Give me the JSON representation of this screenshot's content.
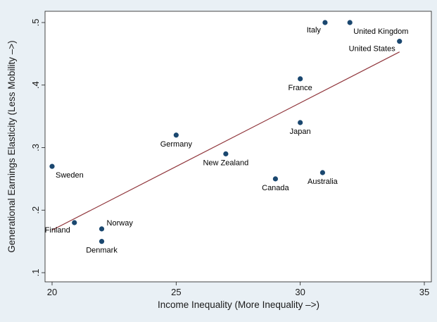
{
  "chart_data": {
    "type": "scatter",
    "title": "",
    "xlabel": "Income Inequality (More Inequality –>)",
    "ylabel": "Generational Earnings Elasticity (Less Mobility –>)",
    "xlim": [
      20,
      35
    ],
    "ylim": [
      0.1,
      0.5
    ],
    "x_ticks": [
      20,
      25,
      30,
      35
    ],
    "x_tick_labels": [
      "20",
      "25",
      "30",
      "35"
    ],
    "y_ticks": [
      0.1,
      0.2,
      0.3,
      0.4,
      0.5
    ],
    "y_tick_labels": [
      ".1",
      ".2",
      ".3",
      ".4",
      ".5"
    ],
    "grid": false,
    "legend": "none",
    "point_color": "#1a476f",
    "fit_line_color": "#90353b",
    "points": [
      {
        "label": "Italy",
        "x": 31.0,
        "y": 0.5,
        "label_pos": "bottom-left"
      },
      {
        "label": "United Kingdom",
        "x": 32.0,
        "y": 0.5,
        "label_pos": "bottom-right"
      },
      {
        "label": "United States",
        "x": 34.0,
        "y": 0.47,
        "label_pos": "bottom-left"
      },
      {
        "label": "France",
        "x": 30.0,
        "y": 0.41,
        "label_pos": "bottom"
      },
      {
        "label": "Japan",
        "x": 30.0,
        "y": 0.34,
        "label_pos": "bottom"
      },
      {
        "label": "Germany",
        "x": 25.0,
        "y": 0.32,
        "label_pos": "bottom"
      },
      {
        "label": "New Zealand",
        "x": 27.0,
        "y": 0.29,
        "label_pos": "bottom"
      },
      {
        "label": "Canada",
        "x": 29.0,
        "y": 0.25,
        "label_pos": "bottom"
      },
      {
        "label": "Australia",
        "x": 30.9,
        "y": 0.26,
        "label_pos": "bottom"
      },
      {
        "label": "Sweden",
        "x": 20.0,
        "y": 0.27,
        "label_pos": "bottom-right"
      },
      {
        "label": "Finland",
        "x": 20.9,
        "y": 0.18,
        "label_pos": "bottom-left"
      },
      {
        "label": "Norway",
        "x": 22.0,
        "y": 0.17,
        "label_pos": "top-right"
      },
      {
        "label": "Denmark",
        "x": 22.0,
        "y": 0.15,
        "label_pos": "bottom"
      }
    ],
    "fit_line": {
      "x": [
        20.0,
        34.0
      ],
      "y": [
        0.168,
        0.453
      ]
    }
  }
}
